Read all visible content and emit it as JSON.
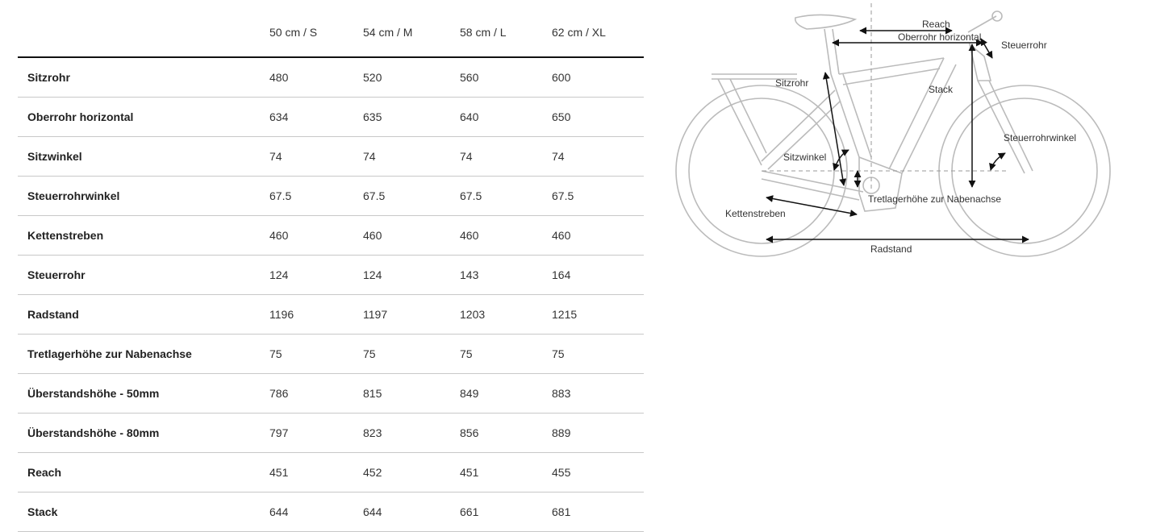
{
  "table": {
    "columns": [
      "",
      "50 cm / S",
      "54 cm / M",
      "58 cm / L",
      "62 cm / XL"
    ],
    "rows": [
      {
        "label": "Sitzrohr",
        "values": [
          "480",
          "520",
          "560",
          "600"
        ]
      },
      {
        "label": "Oberrohr horizontal",
        "values": [
          "634",
          "635",
          "640",
          "650"
        ]
      },
      {
        "label": "Sitzwinkel",
        "values": [
          "74",
          "74",
          "74",
          "74"
        ]
      },
      {
        "label": "Steuerrohrwinkel",
        "values": [
          "67.5",
          "67.5",
          "67.5",
          "67.5"
        ]
      },
      {
        "label": "Kettenstreben",
        "values": [
          "460",
          "460",
          "460",
          "460"
        ]
      },
      {
        "label": "Steuerrohr",
        "values": [
          "124",
          "124",
          "143",
          "164"
        ]
      },
      {
        "label": "Radstand",
        "values": [
          "1196",
          "1197",
          "1203",
          "1215"
        ]
      },
      {
        "label": "Tretlagerhöhe zur Nabenachse",
        "values": [
          "75",
          "75",
          "75",
          "75"
        ]
      },
      {
        "label": "Überstandshöhe - 50mm",
        "values": [
          "786",
          "815",
          "849",
          "883"
        ]
      },
      {
        "label": "Überstandshöhe - 80mm",
        "values": [
          "797",
          "823",
          "856",
          "889"
        ]
      },
      {
        "label": "Reach",
        "values": [
          "451",
          "452",
          "451",
          "455"
        ]
      },
      {
        "label": "Stack",
        "values": [
          "644",
          "644",
          "661",
          "681"
        ]
      }
    ]
  },
  "diagram": {
    "labels": {
      "reach": "Reach",
      "oberrohr": "Oberrohr horizontal",
      "steuerrohr": "Steuerrohr",
      "sitzrohr": "Sitzrohr",
      "stack": "Stack",
      "steuerrohrwinkel": "Steuerrohrwinkel",
      "sitzwinkel": "Sitzwinkel",
      "tretlager": "Tretlagerhöhe zur Nabenachse",
      "kettenstreben": "Kettenstreben",
      "radstand": "Radstand"
    }
  }
}
